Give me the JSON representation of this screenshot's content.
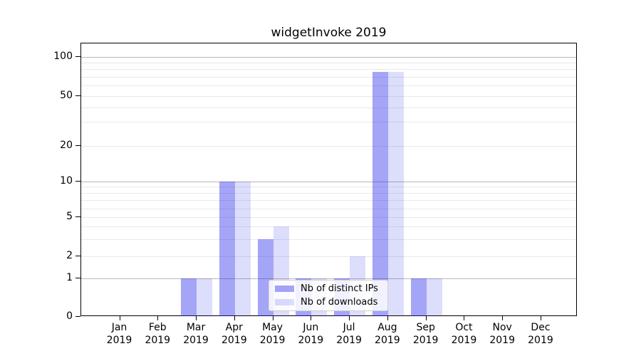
{
  "chart_data": {
    "type": "bar",
    "title": "widgetInvoke 2019",
    "categories": [
      "Jan",
      "Feb",
      "Mar",
      "Apr",
      "May",
      "Jun",
      "Jul",
      "Aug",
      "Sep",
      "Oct",
      "Nov",
      "Dec"
    ],
    "year_label": "2019",
    "series": [
      {
        "name": "Nb of distinct IPs",
        "color": "#1e1eeb",
        "alpha": 0.4,
        "values": [
          0,
          0,
          1,
          10,
          3,
          1,
          1,
          76,
          1,
          0,
          0,
          0
        ]
      },
      {
        "name": "Nb of downloads",
        "color": "#1e1eeb",
        "alpha": 0.15,
        "values": [
          0,
          0,
          1,
          10,
          4,
          1,
          2,
          76,
          1,
          0,
          0,
          0
        ]
      }
    ],
    "yscale": "symlog",
    "ylim": [
      0,
      130
    ],
    "yticks": [
      100,
      50,
      20,
      10,
      5,
      2,
      1,
      0
    ],
    "minor_yticks": [
      90,
      80,
      70,
      60,
      40,
      30,
      9,
      8,
      7,
      6,
      4,
      3
    ],
    "grid": true,
    "legend_position": "lower center",
    "colors": {
      "major_grid": "#b8b8b8",
      "minor_grid": "#e9e9e9",
      "spine": "#000000",
      "text": "#000000"
    }
  }
}
